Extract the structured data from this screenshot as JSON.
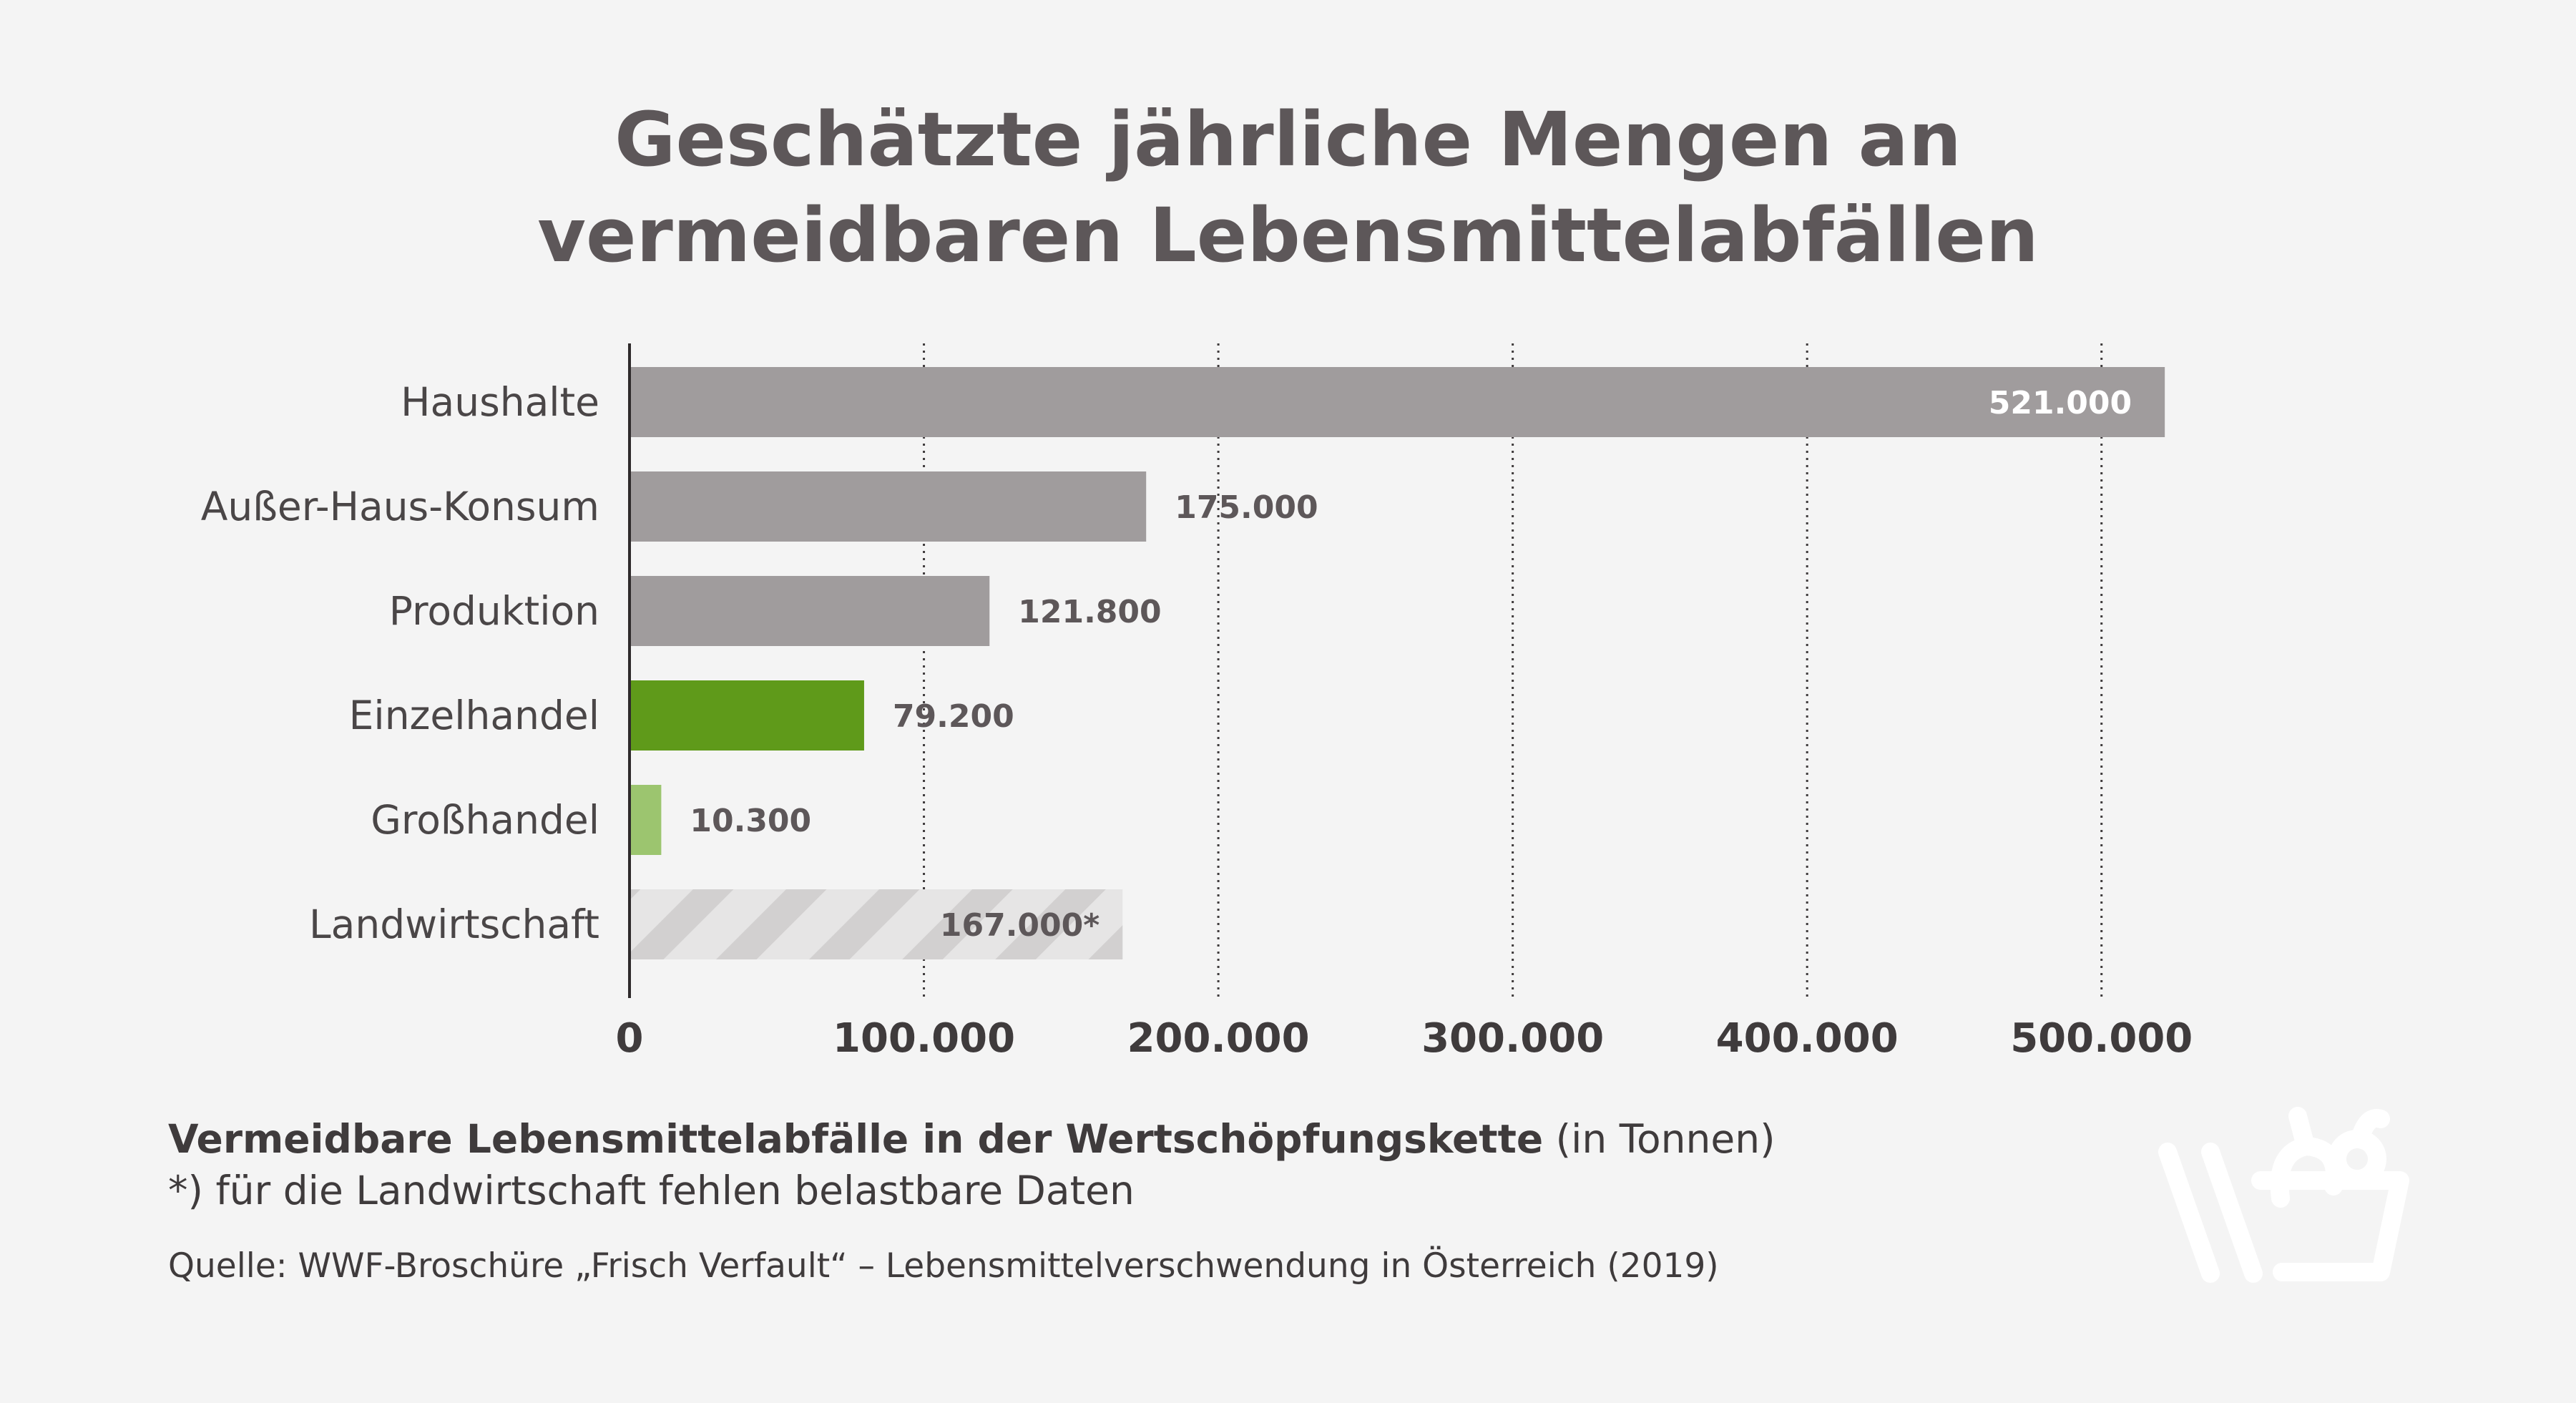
{
  "title": {
    "line1": "Geschätzte jährliche Mengen an",
    "line2": "vermeidbaren Lebensmittelabfällen"
  },
  "chart_data": {
    "type": "bar",
    "orientation": "horizontal",
    "categories": [
      "Haushalte",
      "Außer-Haus-Konsum",
      "Produktion",
      "Einzelhandel",
      "Großhandel",
      "Landwirtschaft"
    ],
    "values": [
      521000,
      175000,
      121800,
      79200,
      10300,
      167000
    ],
    "value_labels": [
      "521.000",
      "175.000",
      "121.800",
      "79.200",
      "10.300",
      "167.000*"
    ],
    "bar_colors": [
      "#a09c9d",
      "#a09c9d",
      "#a09c9d",
      "#5f9a1a",
      "#9cc56f",
      "hatched-lightgray"
    ],
    "x_ticks": [
      0,
      100000,
      200000,
      300000,
      400000,
      500000
    ],
    "x_tick_labels": [
      "0",
      "100.000",
      "200.000",
      "300.000",
      "400.000",
      "500.000"
    ],
    "xlim": [
      0,
      521000
    ],
    "grid": "vertical-dotted"
  },
  "footer": {
    "caption_bold": "Vermeidbare Lebensmittelabfälle in der Wertschöpfungskette",
    "caption_unit": " (in Tonnen)",
    "note": "*) für die Landwirtschaft fehlen belastbare Daten",
    "source": "Quelle: WWF-Broschüre „Frisch Verfault“ – Lebensmittelverschwendung in Österreich (2019)"
  },
  "logo_icon": "shopping-basket-with-fruit-icon"
}
